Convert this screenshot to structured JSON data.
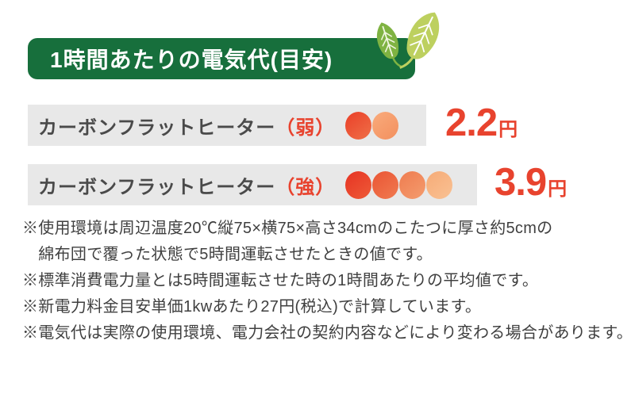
{
  "header": {
    "title": "1時間あたりの電気代(目安)"
  },
  "rows": [
    {
      "label": "カーボンフラットヒーター",
      "mode": "（弱）",
      "dots": [
        [
          "#ea3f28",
          "#ef7048"
        ],
        [
          "#f9ab7c",
          "#f3905e"
        ]
      ],
      "price": "2.2",
      "unit": "円"
    },
    {
      "label": "カーボンフラットヒーター",
      "mode": "（強）",
      "dots": [
        [
          "#e63323",
          "#ee5b38"
        ],
        [
          "#ea5534",
          "#f07a50"
        ],
        [
          "#ef7c50",
          "#f49c6e"
        ],
        [
          "#f6ab77",
          "#f9c193"
        ]
      ],
      "price": "3.9",
      "unit": "円"
    }
  ],
  "notes": [
    "※使用環境は周辺温度20℃縦75×横75×高さ34cmのこたつに厚さ約5cmの",
    "　綿布団で覆った状態で5時間運転させたときの値です。",
    "※標準消費電力量とは5時間運転させた時の1時間あたりの平均値です。",
    "※新電力料金目安単価1kwあたり27円(税込)で計算しています。",
    "※電気代は実際の使用環境、電力会社の契約内容などにより変わる場合があります。"
  ],
  "colors": {
    "banner_green": "#176f3c",
    "row_bg": "#e8e8e8",
    "accent_red": "#e8432e",
    "label_gray": "#4a4a4a",
    "leaf_green_dark": "#7fb342",
    "leaf_green_light": "#bdd05f"
  }
}
